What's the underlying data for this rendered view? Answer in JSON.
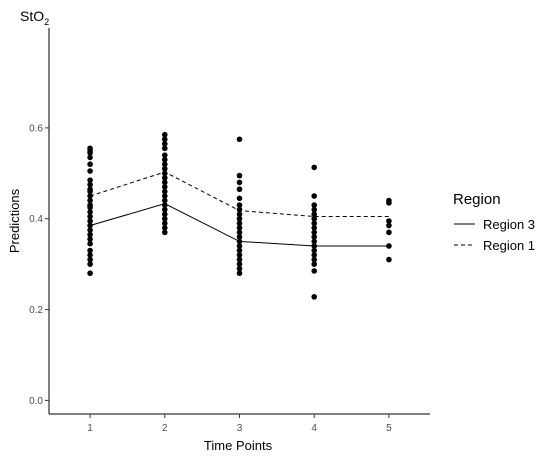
{
  "chart_data": {
    "type": "line",
    "title_main": "StO",
    "title_sub": "2",
    "xlabel": "Time Points",
    "ylabel": "Predictions",
    "xlim": [
      0.45,
      5.55
    ],
    "ylim": [
      -0.03,
      0.82
    ],
    "x_ticks": [
      "1",
      "2",
      "3",
      "4",
      "5"
    ],
    "y_ticks": [
      "0.0",
      "0.2",
      "0.4",
      "0.6"
    ],
    "grid": false,
    "legend": {
      "title": "Region",
      "placement": "right",
      "entries": [
        {
          "label": "Region 3",
          "style": "solid"
        },
        {
          "label": "Region 1",
          "style": "dashed"
        }
      ]
    },
    "series": [
      {
        "name": "Region 3",
        "style": "solid",
        "x": [
          1,
          2,
          3,
          4,
          5
        ],
        "y": [
          0.385,
          0.433,
          0.35,
          0.34,
          0.34
        ]
      },
      {
        "name": "Region 1",
        "style": "dashed",
        "x": [
          1,
          2,
          3,
          4,
          5
        ],
        "y": [
          0.45,
          0.503,
          0.418,
          0.405,
          0.405
        ]
      }
    ],
    "points": [
      {
        "x": 1,
        "y": [
          0.555,
          0.55,
          0.545,
          0.535,
          0.52,
          0.505,
          0.485,
          0.475,
          0.465,
          0.46,
          0.45,
          0.44,
          0.43,
          0.425,
          0.415,
          0.405,
          0.395,
          0.385,
          0.375,
          0.365,
          0.355,
          0.345,
          0.33,
          0.32,
          0.31,
          0.3,
          0.28
        ]
      },
      {
        "x": 2,
        "y": [
          0.585,
          0.575,
          0.565,
          0.555,
          0.54,
          0.53,
          0.52,
          0.51,
          0.5,
          0.49,
          0.48,
          0.47,
          0.46,
          0.45,
          0.44,
          0.43,
          0.42,
          0.41,
          0.4,
          0.39,
          0.38,
          0.37
        ]
      },
      {
        "x": 3,
        "y": [
          0.575,
          0.495,
          0.48,
          0.465,
          0.445,
          0.43,
          0.42,
          0.41,
          0.4,
          0.39,
          0.38,
          0.37,
          0.36,
          0.35,
          0.34,
          0.33,
          0.32,
          0.31,
          0.3,
          0.29,
          0.28
        ]
      },
      {
        "x": 4,
        "y": [
          0.513,
          0.45,
          0.43,
          0.42,
          0.41,
          0.4,
          0.39,
          0.38,
          0.37,
          0.36,
          0.35,
          0.34,
          0.33,
          0.32,
          0.31,
          0.3,
          0.285,
          0.228
        ]
      },
      {
        "x": 5,
        "y": [
          0.44,
          0.435,
          0.395,
          0.385,
          0.37,
          0.34,
          0.31
        ]
      }
    ]
  }
}
